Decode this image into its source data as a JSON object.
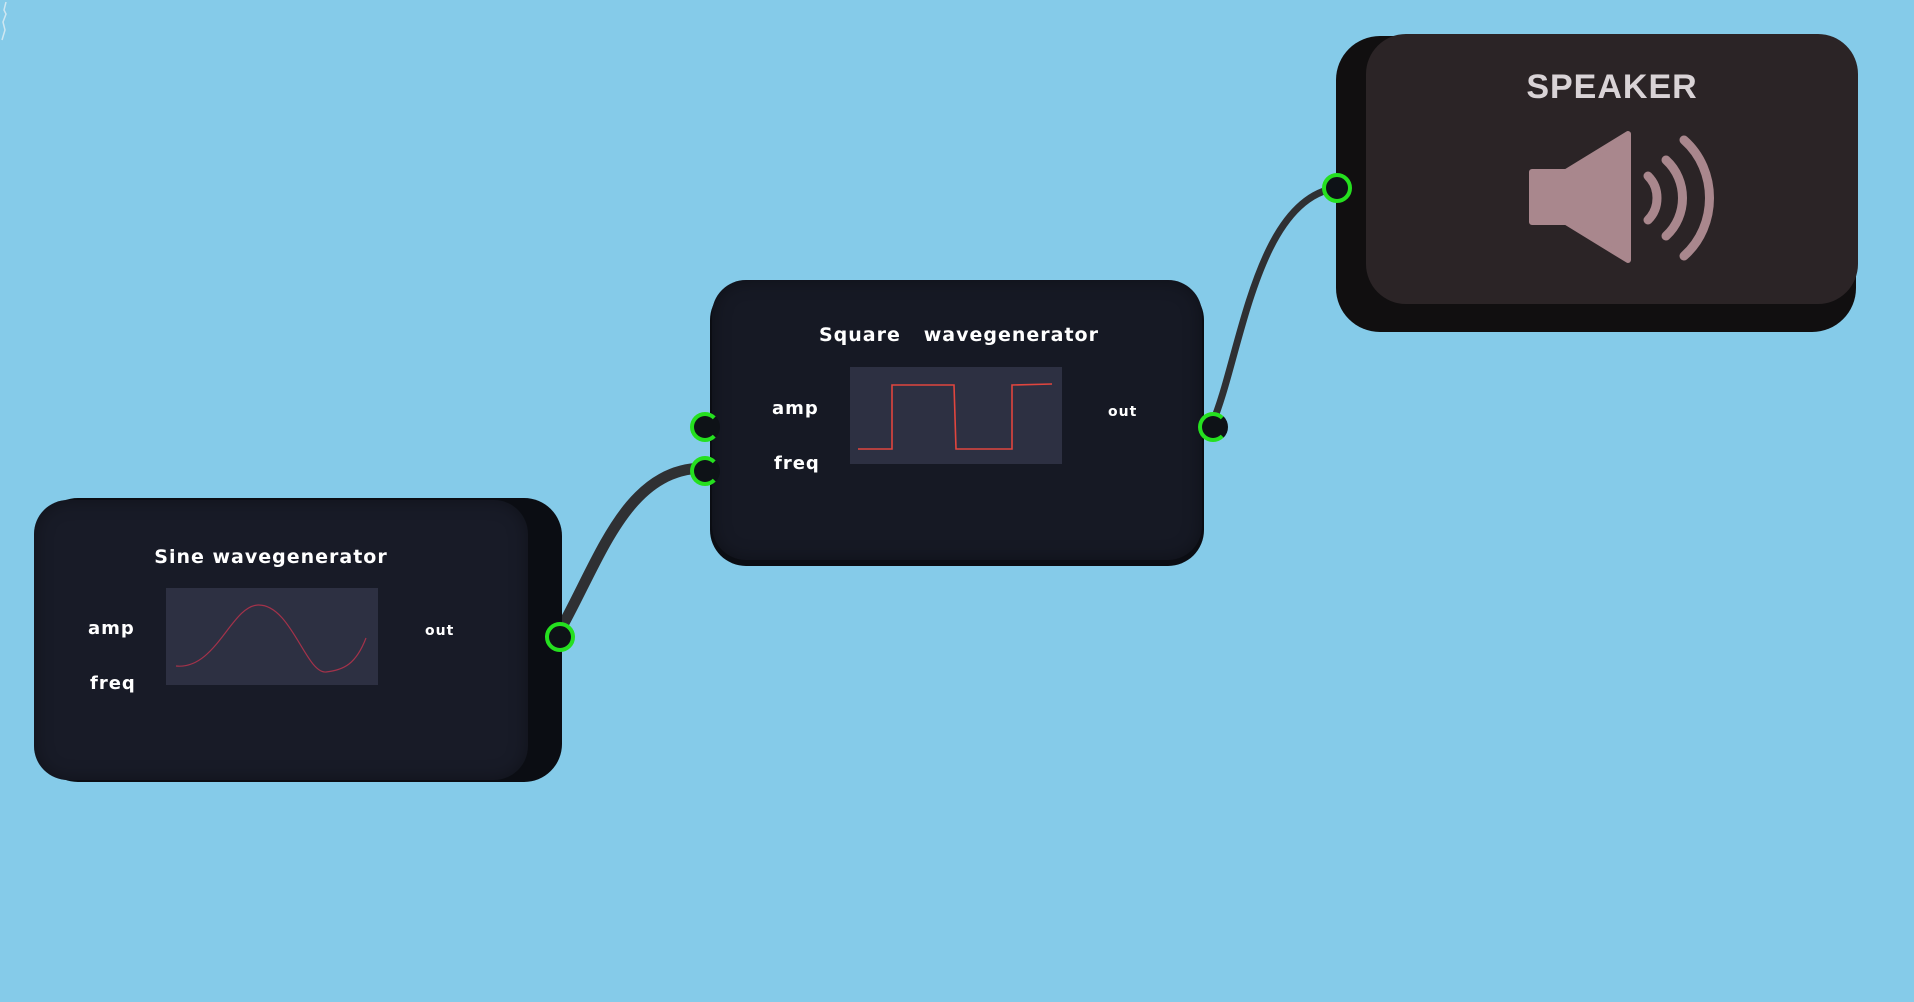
{
  "canvas": {
    "background": "#85cbe9",
    "jack_color": "#25e01f",
    "cable_color": "#2f3033"
  },
  "modules": {
    "sine": {
      "title": "Sine wavegenerator",
      "inputs": {
        "amp": "amp",
        "freq": "freq"
      },
      "output": "out",
      "scope_color": "#a3324a"
    },
    "square": {
      "title": "Square   wavegenerator",
      "inputs": {
        "amp": "amp",
        "freq": "freq"
      },
      "output": "out",
      "scope_color": "#e0453e"
    },
    "speaker": {
      "title": "SPEAKER",
      "icon": "speaker-volume-icon",
      "icon_color": "#a9878d"
    }
  },
  "connections": [
    {
      "from": "sine.out",
      "to": "square.freq"
    },
    {
      "from": "square.out",
      "to": "speaker.in"
    }
  ]
}
